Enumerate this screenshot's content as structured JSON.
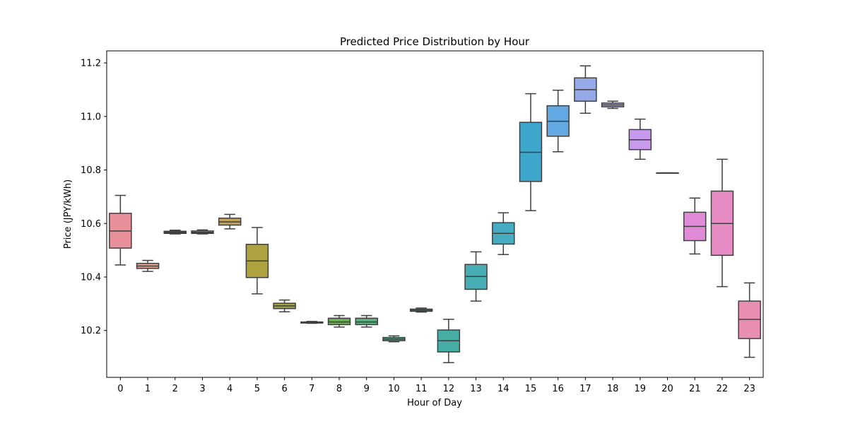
{
  "chart_data": {
    "type": "box",
    "title": "Predicted Price Distribution by Hour",
    "xlabel": "Hour of Day",
    "ylabel": "Price (JPY/kWh)",
    "ylim": [
      10.025,
      11.245
    ],
    "yticks": [
      10.2,
      10.4,
      10.6,
      10.8,
      11.0,
      11.2
    ],
    "ytick_labels": [
      "10.2",
      "10.4",
      "10.6",
      "10.8",
      "11.0",
      "11.2"
    ],
    "categories": [
      "0",
      "1",
      "2",
      "3",
      "4",
      "5",
      "6",
      "7",
      "8",
      "9",
      "10",
      "11",
      "12",
      "13",
      "14",
      "15",
      "16",
      "17",
      "18",
      "19",
      "20",
      "21",
      "22",
      "23"
    ],
    "boxes": [
      {
        "whislo": 10.445,
        "q1": 10.508,
        "med": 10.572,
        "q3": 10.638,
        "whishi": 10.705,
        "color": "#e8909a"
      },
      {
        "whislo": 10.421,
        "q1": 10.432,
        "med": 10.441,
        "q3": 10.451,
        "whishi": 10.462,
        "color": "#e59e8c"
      },
      {
        "whislo": 10.561,
        "q1": 10.563,
        "med": 10.567,
        "q3": 10.571,
        "whishi": 10.575,
        "color": "#de9f80"
      },
      {
        "whislo": 10.561,
        "q1": 10.563,
        "med": 10.567,
        "q3": 10.572,
        "whishi": 10.576,
        "color": "#d5a37a"
      },
      {
        "whislo": 10.58,
        "q1": 10.594,
        "med": 10.606,
        "q3": 10.62,
        "whishi": 10.634,
        "color": "#c4a25a"
      },
      {
        "whislo": 10.337,
        "q1": 10.398,
        "med": 10.46,
        "q3": 10.522,
        "whishi": 10.585,
        "color": "#aea340"
      },
      {
        "whislo": 10.27,
        "q1": 10.282,
        "med": 10.292,
        "q3": 10.302,
        "whishi": 10.314,
        "color": "#a0a540"
      },
      {
        "whislo": 10.227,
        "q1": 10.228,
        "med": 10.23,
        "q3": 10.232,
        "whishi": 10.234,
        "color": "#8ba848"
      },
      {
        "whislo": 10.213,
        "q1": 10.222,
        "med": 10.232,
        "q3": 10.246,
        "whishi": 10.256,
        "color": "#6fae5a"
      },
      {
        "whislo": 10.213,
        "q1": 10.222,
        "med": 10.232,
        "q3": 10.246,
        "whishi": 10.256,
        "color": "#5eb07e"
      },
      {
        "whislo": 10.158,
        "q1": 10.162,
        "med": 10.168,
        "q3": 10.174,
        "whishi": 10.18,
        "color": "#57ae98"
      },
      {
        "whislo": 10.269,
        "q1": 10.272,
        "med": 10.276,
        "q3": 10.28,
        "whishi": 10.284,
        "color": "#52aca8"
      },
      {
        "whislo": 10.08,
        "q1": 10.12,
        "med": 10.162,
        "q3": 10.202,
        "whishi": 10.242,
        "color": "#45ada4"
      },
      {
        "whislo": 10.31,
        "q1": 10.354,
        "med": 10.402,
        "q3": 10.447,
        "whishi": 10.494,
        "color": "#46adb2"
      },
      {
        "whislo": 10.484,
        "q1": 10.523,
        "med": 10.563,
        "q3": 10.603,
        "whishi": 10.64,
        "color": "#48acc0"
      },
      {
        "whislo": 10.648,
        "q1": 10.757,
        "med": 10.866,
        "q3": 10.978,
        "whishi": 11.085,
        "color": "#3ea6cc"
      },
      {
        "whislo": 10.868,
        "q1": 10.926,
        "med": 10.982,
        "q3": 11.04,
        "whishi": 11.098,
        "color": "#62a8e2"
      },
      {
        "whislo": 11.012,
        "q1": 11.057,
        "med": 11.1,
        "q3": 11.144,
        "whishi": 11.189,
        "color": "#95a8e8"
      },
      {
        "whislo": 11.03,
        "q1": 11.036,
        "med": 11.043,
        "q3": 11.05,
        "whishi": 11.057,
        "color": "#a9a2e8"
      },
      {
        "whislo": 10.84,
        "q1": 10.876,
        "med": 10.913,
        "q3": 10.951,
        "whishi": 10.99,
        "color": "#c89aed"
      },
      {
        "whislo": 10.789,
        "q1": 10.789,
        "med": 10.789,
        "q3": 10.789,
        "whishi": 10.789,
        "color": "#d690e0"
      },
      {
        "whislo": 10.486,
        "q1": 10.536,
        "med": 10.589,
        "q3": 10.642,
        "whishi": 10.695,
        "color": "#e18ad8"
      },
      {
        "whislo": 10.364,
        "q1": 10.481,
        "med": 10.6,
        "q3": 10.721,
        "whishi": 10.84,
        "color": "#e78cc4"
      },
      {
        "whislo": 10.1,
        "q1": 10.17,
        "med": 10.242,
        "q3": 10.31,
        "whishi": 10.378,
        "color": "#e88fb3"
      }
    ],
    "grid": false,
    "legend": "none"
  }
}
